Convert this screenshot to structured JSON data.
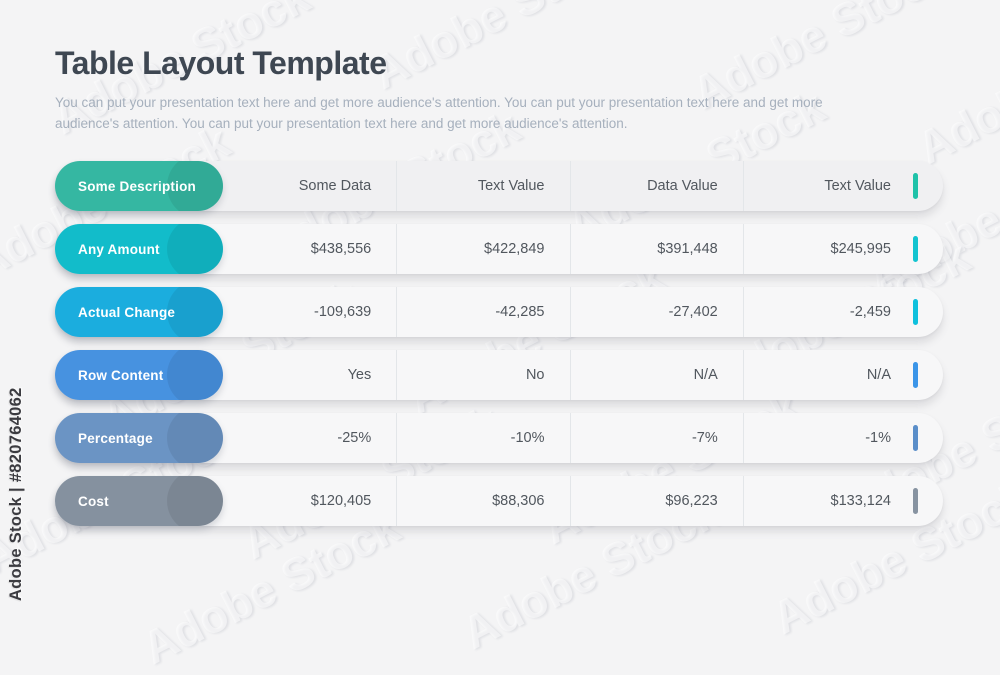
{
  "page": {
    "title": "Table Layout Template",
    "subtitle": "You can put your presentation text here and get more audience's attention. You can put your presentation text here and get more audience's attention. You can put your presentation text here and get more audience's attention."
  },
  "watermark": {
    "stock_label": "Adobe Stock | #820764062",
    "pattern_text": "Adobe Stock"
  },
  "colors": {
    "page_bg": "#f4f4f5",
    "title": "#3e4752",
    "subtitle": "#a6b0bd",
    "cell_text": "#51575e",
    "row_bg": "#f7f7f8",
    "header_row_bg": "#f0f0f2",
    "divider": "#e3e6e9",
    "pill_text": "#ffffff"
  },
  "chart_data": {
    "type": "table",
    "title": "Table Layout Template",
    "rows": [
      {
        "label": "Some Description",
        "is_header": true,
        "pill_color": "#35b7a2",
        "accent_color": "#1fc2a9",
        "values": [
          "Some Data",
          "Text Value",
          "Data Value",
          "Text Value"
        ]
      },
      {
        "label": "Any Amount",
        "is_header": false,
        "pill_color": "#12bcca",
        "accent_color": "#13c4d0",
        "values": [
          "$438,556",
          "$422,849",
          "$391,448",
          "$245,995"
        ]
      },
      {
        "label": "Actual Change",
        "is_header": false,
        "pill_color": "#1badde",
        "accent_color": "#0fc0dd",
        "values": [
          "-109,639",
          "-42,285",
          "-27,402",
          "-2,459"
        ]
      },
      {
        "label": "Row Content",
        "is_header": false,
        "pill_color": "#4792e0",
        "accent_color": "#3b95e8",
        "values": [
          "Yes",
          "No",
          "N/A",
          "N/A"
        ]
      },
      {
        "label": "Percentage",
        "is_header": false,
        "pill_color": "#6b94c4",
        "accent_color": "#5a8ec9",
        "values": [
          "-25%",
          "-10%",
          "-7%",
          "-1%"
        ]
      },
      {
        "label": "Cost",
        "is_header": false,
        "pill_color": "#85919f",
        "accent_color": "#8793a1",
        "values": [
          "$120,405",
          "$88,306",
          "$96,223",
          "$133,124"
        ]
      }
    ]
  }
}
